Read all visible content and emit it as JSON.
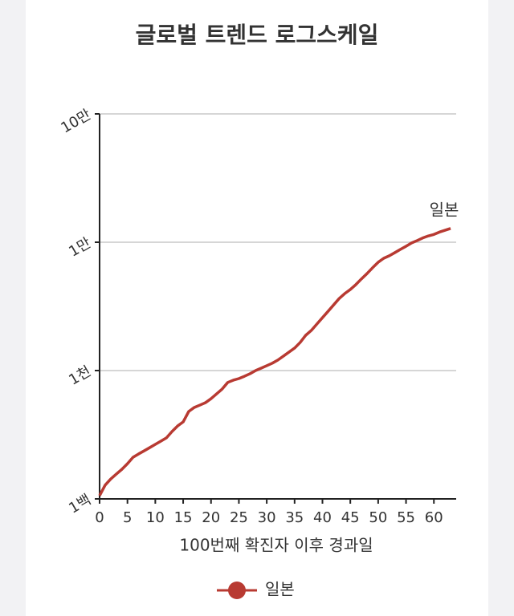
{
  "chart_data": {
    "type": "line",
    "title": "글로벌 트렌드 로그스케일",
    "x_label": "100번째 확진자 이후 경과일",
    "x": [
      0,
      1,
      2,
      3,
      4,
      5,
      6,
      7,
      8,
      9,
      10,
      11,
      12,
      13,
      14,
      15,
      16,
      17,
      18,
      19,
      20,
      21,
      22,
      23,
      24,
      25,
      26,
      27,
      28,
      29,
      30,
      31,
      32,
      33,
      34,
      35,
      36,
      37,
      38,
      39,
      40,
      41,
      42,
      43,
      44,
      45,
      46,
      47,
      48,
      49,
      50,
      51,
      52,
      53,
      54,
      55,
      56,
      57,
      58,
      59,
      60,
      61,
      62,
      63
    ],
    "series": [
      {
        "name": "일본",
        "color": "#b83a32",
        "values": [
          106,
          128,
          143,
          156,
          170,
          188,
          211,
          224,
          237,
          251,
          266,
          282,
          299,
          335,
          370,
          398,
          480,
          516,
          538,
          562,
          604,
          658,
          718,
          808,
          842,
          866,
          903,
          945,
          1000,
          1044,
          1091,
          1141,
          1208,
          1297,
          1394,
          1497,
          1656,
          1884,
          2054,
          2304,
          2583,
          2894,
          3246,
          3641,
          3980,
          4280,
          4680,
          5180,
          5700,
          6330,
          6980,
          7500,
          7840,
          8300,
          8800,
          9300,
          9870,
          10300,
          10800,
          11200,
          11500,
          12000,
          12400,
          12800
        ]
      }
    ],
    "xlim": [
      0,
      64
    ],
    "xticks": [
      0,
      5,
      10,
      15,
      20,
      25,
      30,
      35,
      40,
      45,
      50,
      55,
      60
    ],
    "ylim": [
      100,
      100000
    ],
    "log_y": true,
    "yticks": [
      {
        "value": 100,
        "label": "1백"
      },
      {
        "value": 1000,
        "label": "1천"
      },
      {
        "value": 10000,
        "label": "1만"
      },
      {
        "value": 100000,
        "label": "10만"
      }
    ],
    "grid": true
  }
}
